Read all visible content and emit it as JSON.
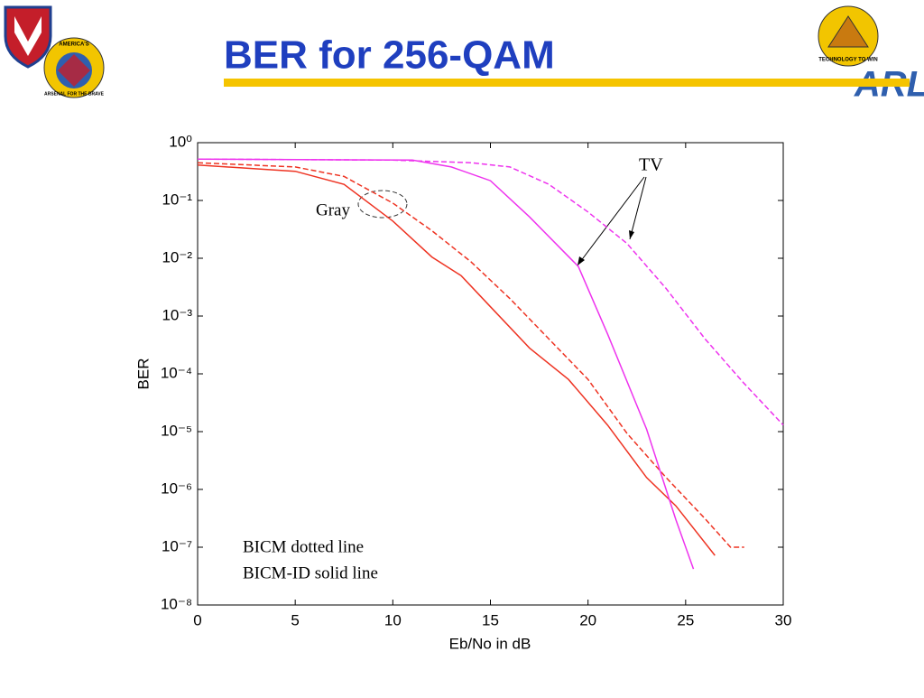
{
  "header": {
    "title": "BER for 256-QAM",
    "logo_left_top": "AMERICA'S",
    "logo_left_bottom": "ARSENAL FOR THE BRAVE",
    "logo_right_ring": "TECHNOLOGY TO WIN",
    "logo_right_mark": "ARL"
  },
  "chart_data": {
    "type": "line",
    "log_y": true,
    "xlabel": "Eb/No in dB",
    "ylabel": "BER",
    "xlim": [
      0,
      30
    ],
    "xticks": [
      0,
      5,
      10,
      15,
      20,
      25,
      30
    ],
    "ylim": [
      1e-08,
      1
    ],
    "yticks": [
      {
        "value": 1,
        "label": "10⁰"
      },
      {
        "value": 0.1,
        "label": "10⁻¹"
      },
      {
        "value": 0.01,
        "label": "10⁻²"
      },
      {
        "value": 0.001,
        "label": "10⁻³"
      },
      {
        "value": 0.0001,
        "label": "10⁻⁴"
      },
      {
        "value": 1e-05,
        "label": "10⁻⁵"
      },
      {
        "value": 1e-06,
        "label": "10⁻⁶"
      },
      {
        "value": 1e-07,
        "label": "10⁻⁷"
      },
      {
        "value": 1e-08,
        "label": "10⁻⁸"
      }
    ],
    "annotations": [
      "TV",
      "Gray",
      "BICM dotted line",
      "BICM-ID solid line"
    ],
    "series": [
      {
        "color": "#ee3322",
        "style": "solid",
        "x": [
          0,
          5,
          7.5,
          10,
          12,
          13.5,
          15,
          17,
          19,
          21,
          23,
          24.5,
          26.5
        ],
        "values": [
          0.41,
          0.32,
          0.19,
          0.044,
          0.0105,
          0.005,
          0.00145,
          0.00028,
          8e-05,
          1.3e-05,
          1.6e-06,
          5.2e-07,
          7.2e-08
        ]
      },
      {
        "color": "#ee3322",
        "style": "dashed",
        "x": [
          0,
          5,
          7.5,
          10,
          12,
          14,
          16,
          18,
          20,
          22,
          24,
          26,
          27.3,
          28
        ],
        "values": [
          0.45,
          0.38,
          0.26,
          0.09,
          0.03,
          0.0087,
          0.002,
          0.0004,
          8e-05,
          9.3e-06,
          1.6e-06,
          3.1e-07,
          1e-07,
          1e-07
        ]
      },
      {
        "color": "#ee33ee",
        "style": "solid",
        "x": [
          0,
          11,
          13,
          15,
          17,
          19.5,
          21,
          23,
          24.5,
          25.4
        ],
        "values": [
          0.52,
          0.5,
          0.38,
          0.22,
          0.052,
          0.0072,
          0.00049,
          1.1e-05,
          3e-07,
          4.2e-08
        ]
      },
      {
        "color": "#ee33ee",
        "style": "dashed",
        "x": [
          0,
          10,
          14,
          16,
          18,
          20,
          22,
          24,
          26,
          28,
          30
        ],
        "values": [
          0.52,
          0.5,
          0.45,
          0.38,
          0.19,
          0.063,
          0.018,
          0.003,
          0.0004,
          6.8e-05,
          1.3e-05
        ]
      }
    ]
  }
}
